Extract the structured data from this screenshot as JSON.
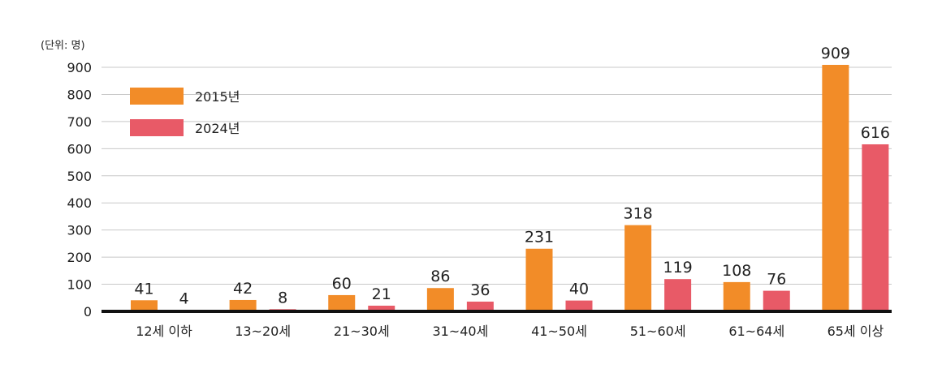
{
  "chart_data": {
    "type": "bar",
    "unit_label": "(단위: 명)",
    "categories": [
      "12세 이하",
      "13~20세",
      "21~30세",
      "31~40세",
      "41~50세",
      "51~60세",
      "61~64세",
      "65세 이상"
    ],
    "series": [
      {
        "name": "2015년",
        "color": "#F28C28",
        "values": [
          41,
          42,
          60,
          86,
          231,
          318,
          108,
          909
        ]
      },
      {
        "name": "2024년",
        "color": "#E85A67",
        "values": [
          4,
          8,
          21,
          36,
          40,
          119,
          76,
          616
        ]
      }
    ],
    "ylim": [
      0,
      900
    ],
    "yticks": [
      0,
      100,
      200,
      300,
      400,
      500,
      600,
      700,
      800,
      900
    ],
    "grid": true,
    "legend_position": "top-left"
  }
}
